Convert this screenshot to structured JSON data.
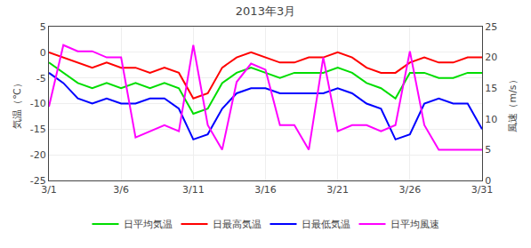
{
  "chart_data": {
    "type": "line",
    "title": "2013年3月",
    "x": [
      1,
      2,
      3,
      4,
      5,
      6,
      7,
      8,
      9,
      10,
      11,
      12,
      13,
      14,
      15,
      16,
      17,
      18,
      19,
      20,
      21,
      22,
      23,
      24,
      25,
      26,
      27,
      28,
      29,
      30,
      31
    ],
    "xlim": [
      1,
      31
    ],
    "xticks": [
      {
        "value": 1,
        "label": "3/1"
      },
      {
        "value": 6,
        "label": "3/6"
      },
      {
        "value": 11,
        "label": "3/11"
      },
      {
        "value": 16,
        "label": "3/16"
      },
      {
        "value": 21,
        "label": "3/21"
      },
      {
        "value": 26,
        "label": "3/26"
      },
      {
        "value": 31,
        "label": "3/31"
      }
    ],
    "ylabel": "気温（℃）",
    "ylim": [
      -25,
      5
    ],
    "yticks": [
      -25,
      -20,
      -15,
      -10,
      -5,
      0,
      5
    ],
    "y2label": "風速（m/s）",
    "y2lim": [
      0,
      25
    ],
    "y2ticks": [
      0,
      5,
      10,
      15,
      20,
      25
    ],
    "grid": true,
    "legend": "bottom",
    "series": [
      {
        "name": "日平均気温",
        "color": "#00dd00",
        "values": [
          -2,
          -4,
          -6,
          -7,
          -6,
          -7,
          -6,
          -7,
          -6,
          -7,
          -12,
          -11,
          -6,
          -4,
          -3,
          -4,
          -5,
          -4,
          -4,
          -4,
          -3,
          -4,
          -6,
          -7,
          -9,
          -4,
          -4,
          -5,
          -5,
          -4,
          -4
        ]
      },
      {
        "name": "日最高気温",
        "color": "#ff0000",
        "values": [
          0,
          -1,
          -2,
          -3,
          -2,
          -3,
          -3,
          -4,
          -3,
          -4,
          -9,
          -8,
          -3,
          -1,
          0,
          -1,
          -2,
          -2,
          -1,
          -1,
          0,
          -1,
          -3,
          -4,
          -4,
          -2,
          -1,
          -2,
          -2,
          -1,
          -1
        ]
      },
      {
        "name": "日最低気温",
        "color": "#0000ff",
        "values": [
          -4,
          -6,
          -9,
          -10,
          -9,
          -10,
          -10,
          -9,
          -9,
          -11,
          -17,
          -16,
          -11,
          -8,
          -7,
          -7,
          -8,
          -8,
          -8,
          -8,
          -7,
          -8,
          -10,
          -11,
          -17,
          -16,
          -10,
          -9,
          -10,
          -10,
          -15
        ]
      },
      {
        "name": "日平均風速",
        "color": "#ff00ff",
        "axis": "y2",
        "values": [
          12,
          22,
          21,
          21,
          20,
          20,
          7,
          8,
          9,
          8,
          22,
          9,
          5,
          16,
          19,
          18,
          9,
          9,
          5,
          20,
          8,
          9,
          9,
          8,
          9,
          21,
          9,
          5,
          5,
          5,
          5
        ]
      }
    ]
  }
}
